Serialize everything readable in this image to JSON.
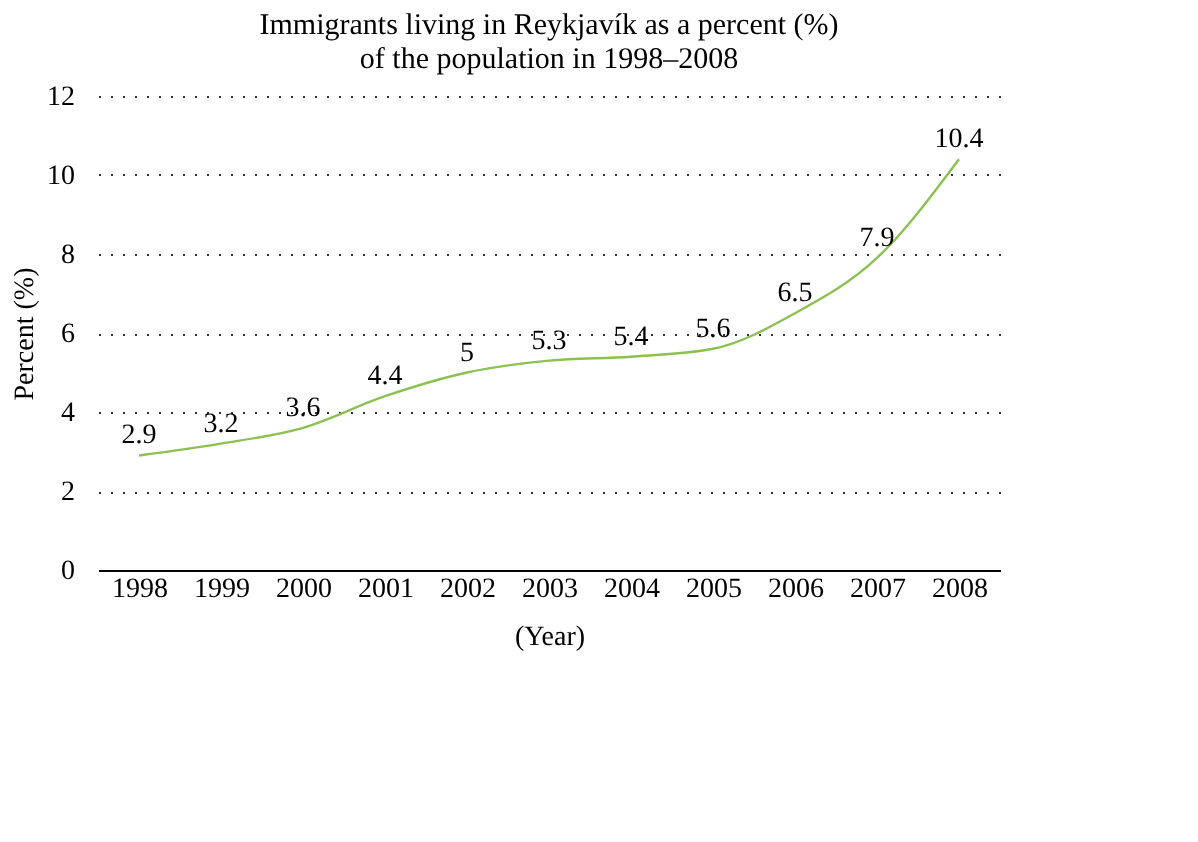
{
  "chart_data": {
    "type": "line",
    "title": [
      "Immigrants living in Reykjavík as a percent (%)",
      "of the population in 1998–2008"
    ],
    "xlabel": "(Year)",
    "ylabel": "Percent (%)",
    "categories": [
      "1998",
      "1999",
      "2000",
      "2001",
      "2002",
      "2003",
      "2004",
      "2005",
      "2006",
      "2007",
      "2008"
    ],
    "series": [
      {
        "color": "#8cc152",
        "values": [
          2.9,
          3.2,
          3.6,
          4.4,
          5,
          5.3,
          5.4,
          5.6,
          6.5,
          7.9,
          10.4
        ]
      }
    ],
    "ylim": [
      0,
      12
    ],
    "yticks": [
      0,
      2,
      4,
      6,
      8,
      10,
      12
    ],
    "grid": "y",
    "data_labels": true,
    "marker": "none",
    "line_style": "solid",
    "legend": false
  }
}
